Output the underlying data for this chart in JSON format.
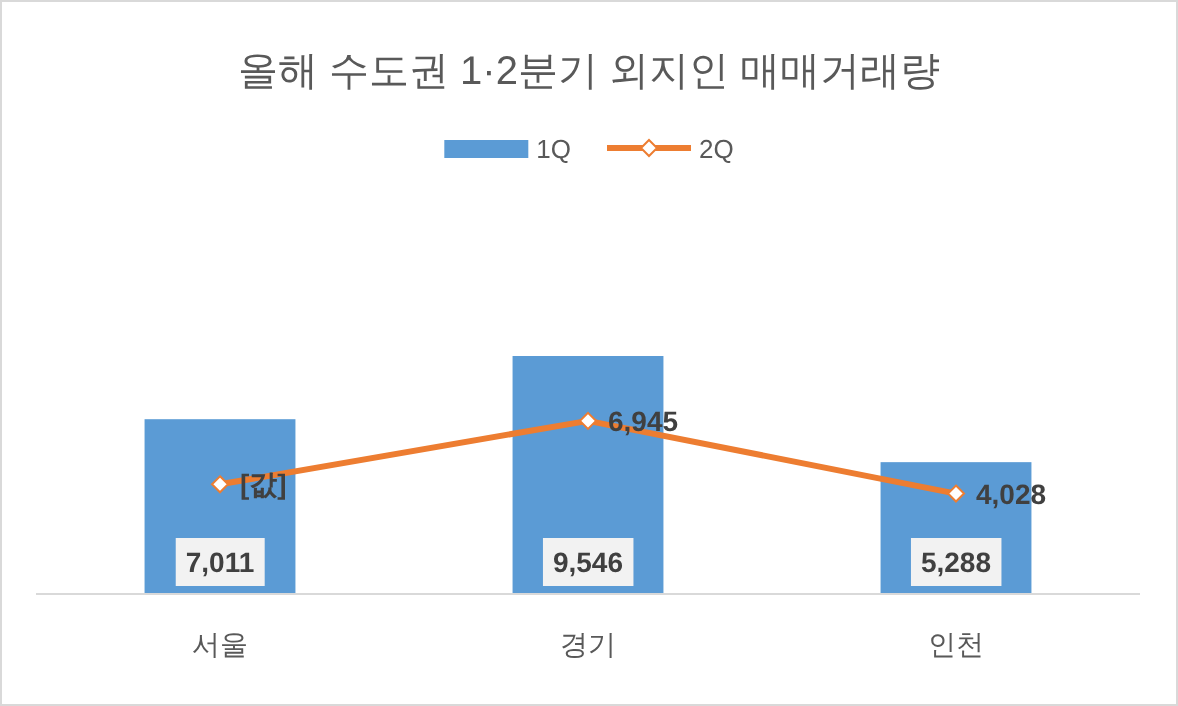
{
  "chart_data": {
    "type": "bar",
    "title": "올해 수도권 1·2분기 외지인 매매거래량",
    "categories": [
      "서울",
      "경기",
      "인천"
    ],
    "legend": "top",
    "series": [
      {
        "name": "1Q",
        "color": "#5b9bd5",
        "values": [
          7011,
          9546,
          5288
        ],
        "value_labels": [
          "7,011",
          "9,546",
          "5,288"
        ]
      },
      {
        "name": "2Q",
        "type": "line",
        "color": "#ed7d31",
        "marker": "diamond",
        "values": [
          4400,
          6945,
          4028
        ],
        "value_labels": [
          "[값]",
          "6,945",
          "4,028"
        ]
      }
    ]
  }
}
